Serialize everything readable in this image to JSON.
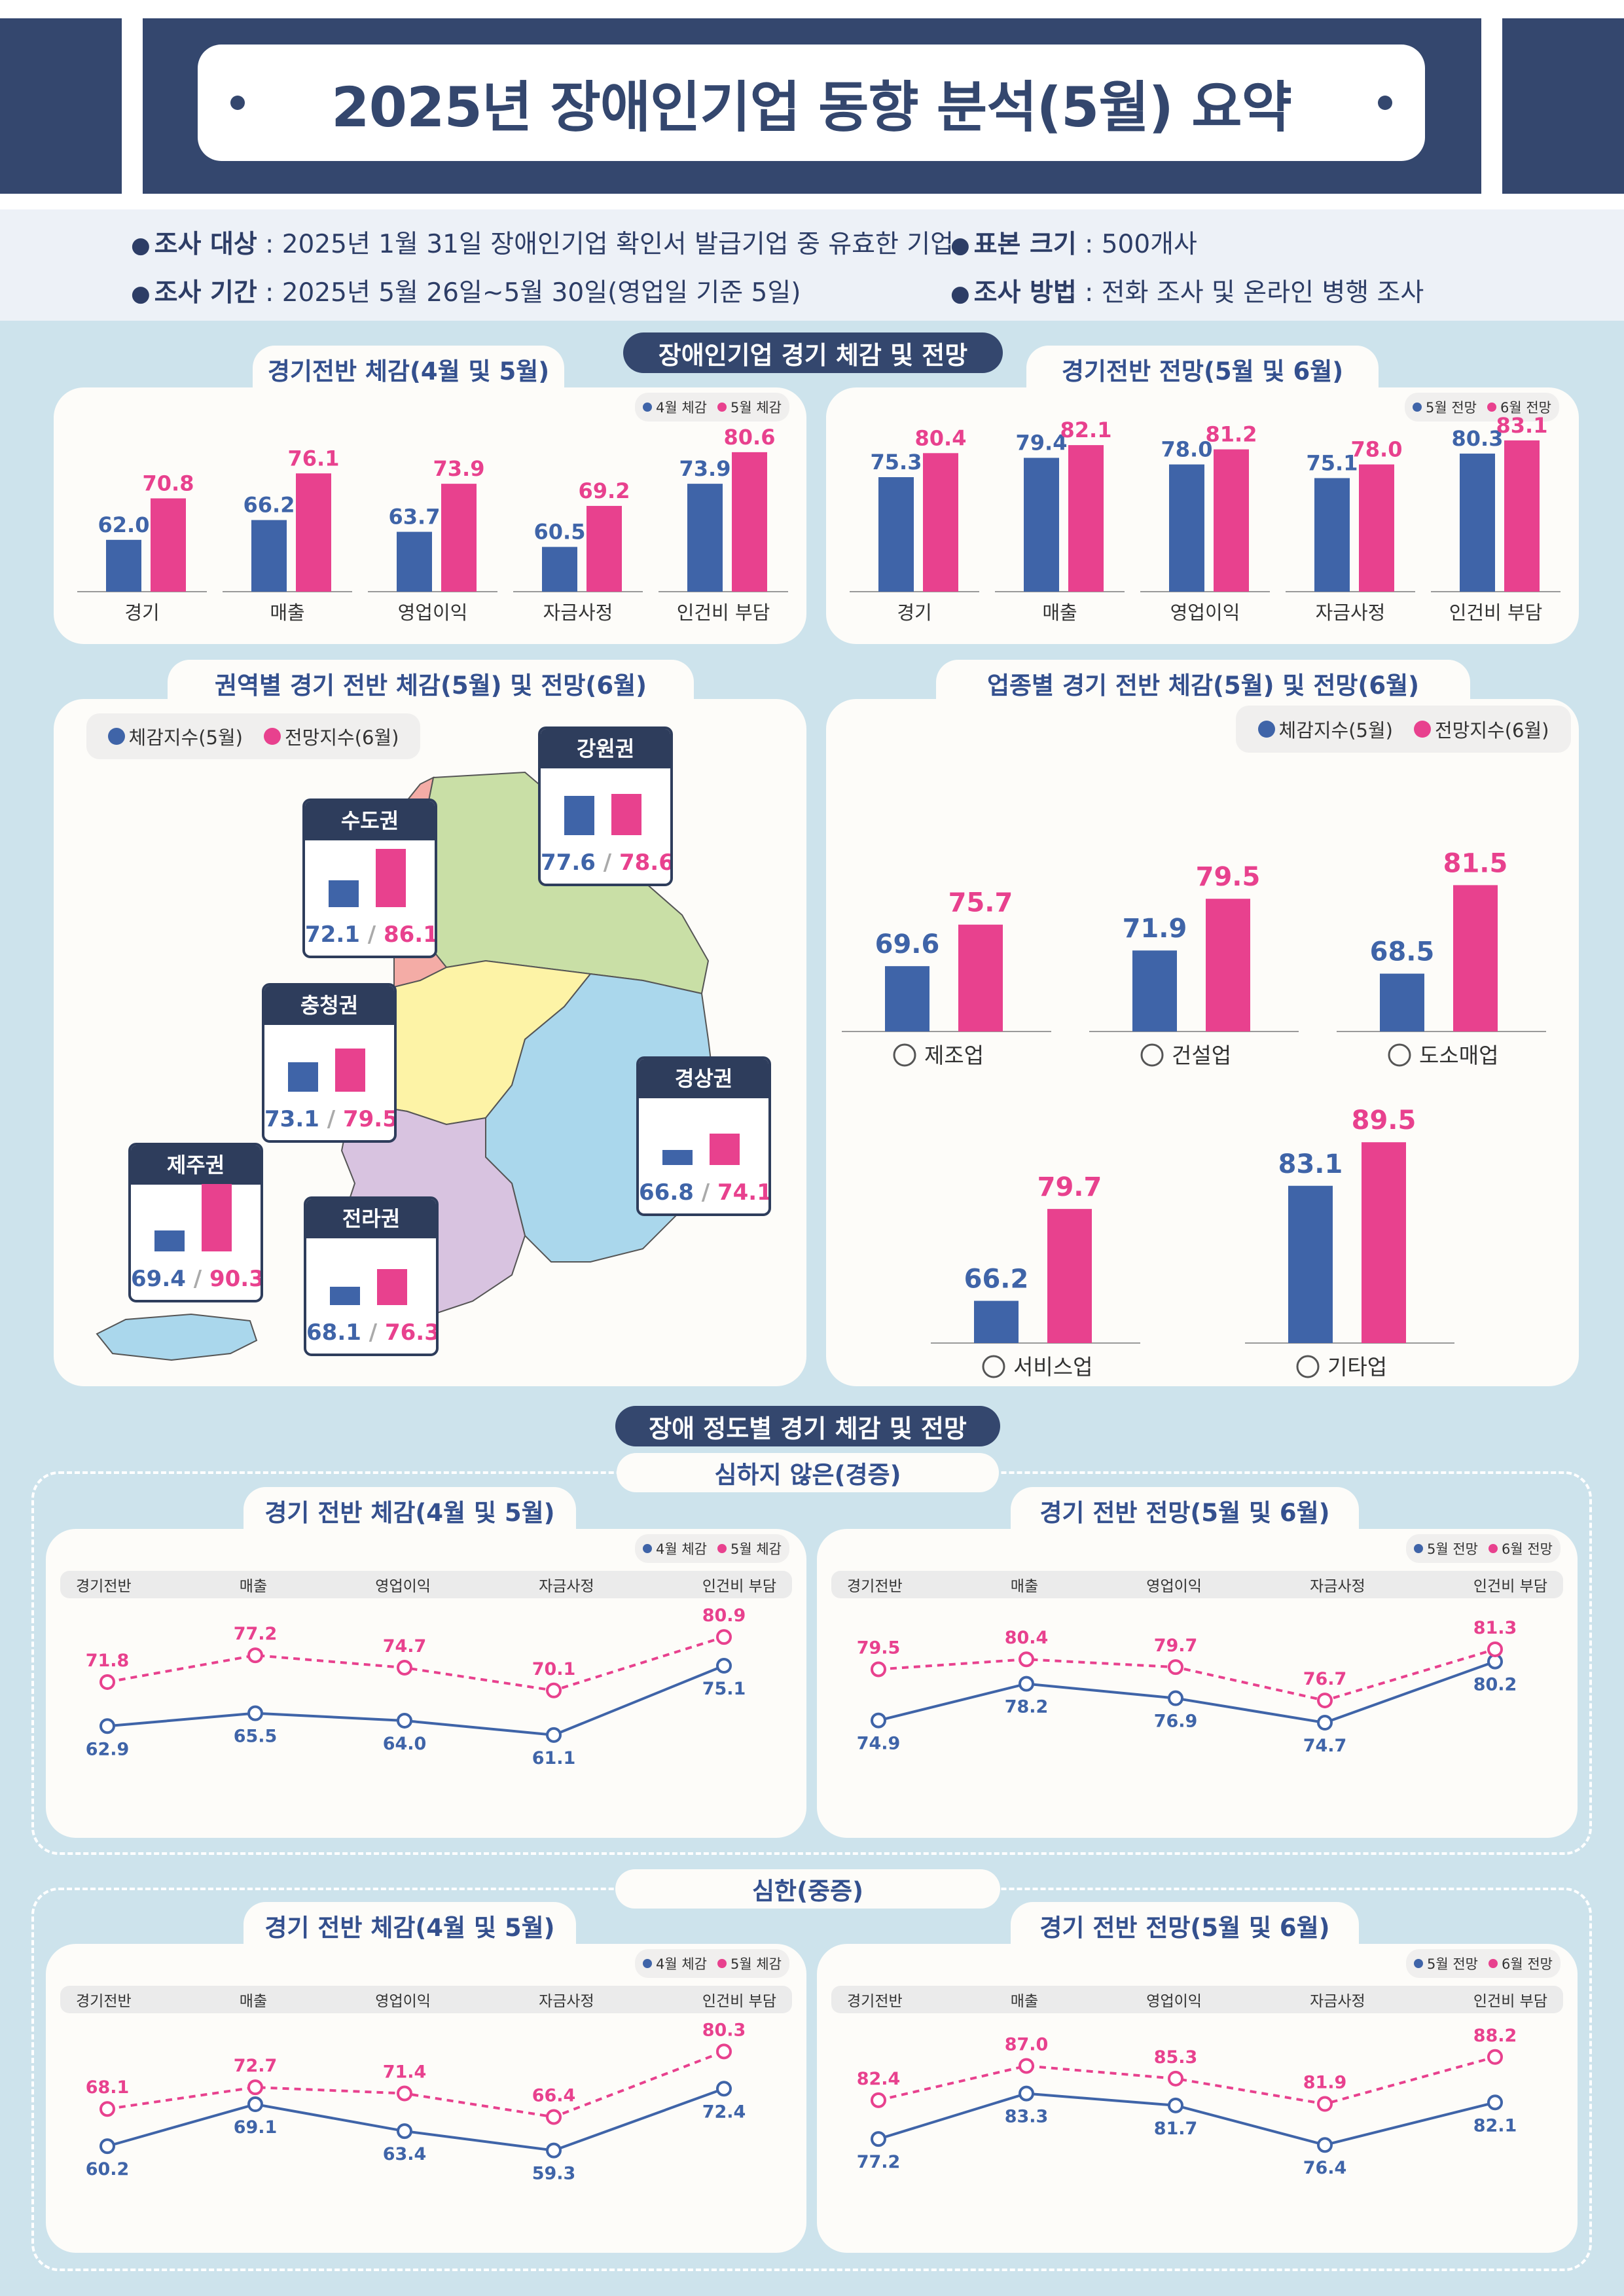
{
  "header": {
    "title": "2025년 장애인기업 동향 분석(5월) 요약"
  },
  "survey": {
    "target_label": "조사 대상",
    "target_value": "2025년 1월 31일 장애인기업 확인서 발급기업 중 유효한 기업",
    "period_label": "조사 기간",
    "period_value": "2025년 5월 26일~5월 30일(영업일 기준 5일)",
    "sample_label": "표본 크기",
    "sample_value": "500개사",
    "method_label": "조사 방법",
    "method_value": "전화 조사 및 온라인 병행 조사"
  },
  "colors": {
    "navy": "#34476e",
    "blue": "#3f64a8",
    "pink": "#e8418e",
    "panel": "#fdfcf9",
    "bg": "#cde3ec"
  },
  "section1": {
    "pill": "장애인기업 경기 체감 및 전망",
    "left_title": "경기전반 체감(4월 및 5월)",
    "right_title": "경기전반 전망(5월 및 6월)",
    "left_legend": [
      "4월 체감",
      "5월 체감"
    ],
    "right_legend": [
      "5월 전망",
      "6월 전망"
    ]
  },
  "section2": {
    "region_title": "권역별 경기 전반 체감(5월) 및 전망(6월)",
    "industry_title": "업종별 경기 전반 체감(5월) 및 전망(6월)",
    "legend": [
      "체감지수(5월)",
      "전망지수(6월)"
    ],
    "regions": [
      {
        "name": "강원권",
        "feel": 77.6,
        "outlook": 78.6,
        "feel_text": "77.6",
        "outlook_text": "78.6"
      },
      {
        "name": "수도권",
        "feel": 72.1,
        "outlook": 86.1,
        "feel_text": "72.1",
        "outlook_text": "86.1"
      },
      {
        "name": "충청권",
        "feel": 73.1,
        "outlook": 79.5,
        "feel_text": "73.1",
        "outlook_text": "79.5"
      },
      {
        "name": "경상권",
        "feel": 66.8,
        "outlook": 74.1,
        "feel_text": "66.8",
        "outlook_text": "74.1"
      },
      {
        "name": "제주권",
        "feel": 69.4,
        "outlook": 90.3,
        "feel_text": "69.4",
        "outlook_text": "90.3"
      },
      {
        "name": "전라권",
        "feel": 68.1,
        "outlook": 76.3,
        "feel_text": "68.1",
        "outlook_text": "76.3"
      }
    ],
    "slash": "/",
    "industries": [
      {
        "name": "제조업",
        "icon": "gear-icon"
      },
      {
        "name": "건설업",
        "icon": "house-icon"
      },
      {
        "name": "도소매업",
        "icon": "box-clock-icon"
      },
      {
        "name": "서비스업",
        "icon": "smile-icon"
      },
      {
        "name": "기타업",
        "icon": "hand-icon"
      }
    ]
  },
  "section3": {
    "pill": "장애 정도별 경기 체감 및 전망",
    "mild_title": "심하지 않은(경증)",
    "severe_title": "심한(중증)",
    "feel_title": "경기 전반 체감(4월 및 5월)",
    "outlook_title": "경기 전반 전망(5월 및 6월)",
    "feel_legend": [
      "4월 체감",
      "5월 체감"
    ],
    "outlook_legend": [
      "5월 전망",
      "6월 전망"
    ],
    "categories": [
      "경기전반",
      "매출",
      "영업이익",
      "자금사정",
      "인건비 부담"
    ]
  },
  "chart_data": [
    {
      "id": "overall-feel",
      "type": "bar",
      "title": "경기전반 체감(4월 및 5월)",
      "categories": [
        "경기",
        "매출",
        "영업이익",
        "자금사정",
        "인건비 부담"
      ],
      "series": [
        {
          "name": "4월 체감",
          "values": [
            62.0,
            66.2,
            63.7,
            60.5,
            73.9
          ]
        },
        {
          "name": "5월 체감",
          "values": [
            70.8,
            76.1,
            73.9,
            69.2,
            80.6
          ]
        }
      ]
    },
    {
      "id": "overall-outlook",
      "type": "bar",
      "title": "경기전반 전망(5월 및 6월)",
      "categories": [
        "경기",
        "매출",
        "영업이익",
        "자금사정",
        "인건비 부담"
      ],
      "series": [
        {
          "name": "5월 전망",
          "values": [
            75.3,
            79.4,
            78.0,
            75.1,
            80.3
          ]
        },
        {
          "name": "6월 전망",
          "values": [
            80.4,
            82.1,
            81.2,
            78.0,
            83.1
          ]
        }
      ]
    },
    {
      "id": "region",
      "type": "bar",
      "title": "권역별 경기 전반 체감(5월) 및 전망(6월)",
      "categories": [
        "강원권",
        "수도권",
        "충청권",
        "경상권",
        "제주권",
        "전라권"
      ],
      "series": [
        {
          "name": "체감지수(5월)",
          "values": [
            77.6,
            72.1,
            73.1,
            66.8,
            69.4,
            68.1
          ]
        },
        {
          "name": "전망지수(6월)",
          "values": [
            78.6,
            86.1,
            79.5,
            74.1,
            90.3,
            76.3
          ]
        }
      ]
    },
    {
      "id": "industry",
      "type": "bar",
      "title": "업종별 경기 전반 체감(5월) 및 전망(6월)",
      "categories": [
        "제조업",
        "건설업",
        "도소매업",
        "서비스업",
        "기타업"
      ],
      "series": [
        {
          "name": "체감지수(5월)",
          "values": [
            69.6,
            71.9,
            68.5,
            66.2,
            83.1
          ]
        },
        {
          "name": "전망지수(6월)",
          "values": [
            75.7,
            79.5,
            81.5,
            79.7,
            89.5
          ]
        }
      ]
    },
    {
      "id": "mild-feel",
      "type": "line",
      "title": "경기 전반 체감(4월 및 5월)",
      "categories": [
        "경기전반",
        "매출",
        "영업이익",
        "자금사정",
        "인건비 부담"
      ],
      "series": [
        {
          "name": "4월 체감",
          "values": [
            62.9,
            65.5,
            64.0,
            61.1,
            75.1
          ]
        },
        {
          "name": "5월 체감",
          "values": [
            71.8,
            77.2,
            74.7,
            70.1,
            80.9
          ]
        }
      ]
    },
    {
      "id": "mild-outlook",
      "type": "line",
      "title": "경기 전반 전망(5월 및 6월)",
      "categories": [
        "경기전반",
        "매출",
        "영업이익",
        "자금사정",
        "인건비 부담"
      ],
      "series": [
        {
          "name": "5월 전망",
          "values": [
            74.9,
            78.2,
            76.9,
            74.7,
            80.2
          ]
        },
        {
          "name": "6월 전망",
          "values": [
            79.5,
            80.4,
            79.7,
            76.7,
            81.3
          ]
        }
      ]
    },
    {
      "id": "severe-feel",
      "type": "line",
      "title": "경기 전반 체감(4월 및 5월)",
      "categories": [
        "경기전반",
        "매출",
        "영업이익",
        "자금사정",
        "인건비 부담"
      ],
      "series": [
        {
          "name": "4월 체감",
          "values": [
            60.2,
            69.1,
            63.4,
            59.3,
            72.4
          ]
        },
        {
          "name": "5월 체감",
          "values": [
            68.1,
            72.7,
            71.4,
            66.4,
            80.3
          ]
        }
      ]
    },
    {
      "id": "severe-outlook",
      "type": "line",
      "title": "경기 전반 전망(5월 및 6월)",
      "categories": [
        "경기전반",
        "매출",
        "영업이익",
        "자금사정",
        "인건비 부담"
      ],
      "series": [
        {
          "name": "5월 전망",
          "values": [
            77.2,
            83.3,
            81.7,
            76.4,
            82.1
          ]
        },
        {
          "name": "6월 전망",
          "values": [
            82.4,
            87.0,
            85.3,
            81.9,
            88.2
          ]
        }
      ]
    }
  ]
}
